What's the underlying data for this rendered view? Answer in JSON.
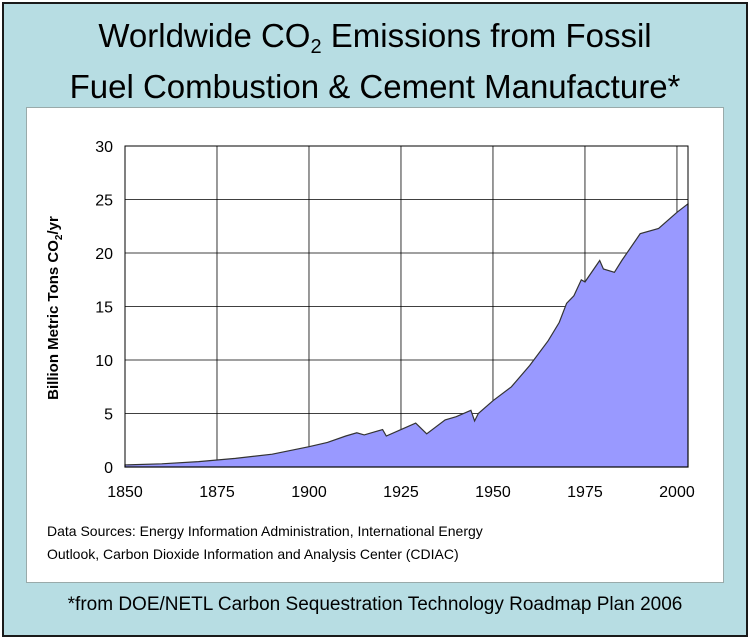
{
  "title": {
    "line1_prefix": "Worldwide CO",
    "line1_sub": "2",
    "line1_suffix": " Emissions from Fossil",
    "line2": "Fuel Combustion & Cement Manufacture*"
  },
  "footer": "*from DOE/NETL Carbon Sequestration Technology Roadmap Plan 2006",
  "colors": {
    "frame_bg": "#b7dde3",
    "area_fill": "#9999ff",
    "line": "#333333"
  },
  "chart_data": {
    "type": "area",
    "ylabel_prefix": "Billion Metric Tons CO",
    "ylabel_sub": "2",
    "ylabel_suffix": "/yr",
    "xlabel": "",
    "xlim": [
      1850,
      2003
    ],
    "ylim": [
      0,
      30
    ],
    "x_ticks": [
      "1850",
      "1875",
      "1900",
      "1925",
      "1950",
      "1975",
      "2000"
    ],
    "y_ticks": [
      "0",
      "5",
      "10",
      "15",
      "20",
      "25",
      "30"
    ],
    "grid": true,
    "source_line1": "Data Sources: Energy Information Administration, International Energy",
    "source_line2": "Outlook, Carbon Dioxide Information and Analysis Center (CDIAC)",
    "x": [
      1850,
      1860,
      1870,
      1880,
      1890,
      1900,
      1905,
      1910,
      1913,
      1915,
      1918,
      1920,
      1921,
      1925,
      1929,
      1932,
      1937,
      1940,
      1944,
      1945,
      1946,
      1950,
      1955,
      1960,
      1965,
      1968,
      1970,
      1972,
      1974,
      1975,
      1979,
      1980,
      1983,
      1985,
      1990,
      1995,
      2000,
      2003
    ],
    "y": [
      0.2,
      0.3,
      0.5,
      0.8,
      1.2,
      1.9,
      2.3,
      2.9,
      3.2,
      3.0,
      3.3,
      3.5,
      2.9,
      3.5,
      4.1,
      3.1,
      4.4,
      4.7,
      5.3,
      4.3,
      5.0,
      6.2,
      7.5,
      9.5,
      11.8,
      13.5,
      15.3,
      16.0,
      17.5,
      17.3,
      19.3,
      18.5,
      18.2,
      19.3,
      21.8,
      22.3,
      23.8,
      24.6
    ]
  }
}
